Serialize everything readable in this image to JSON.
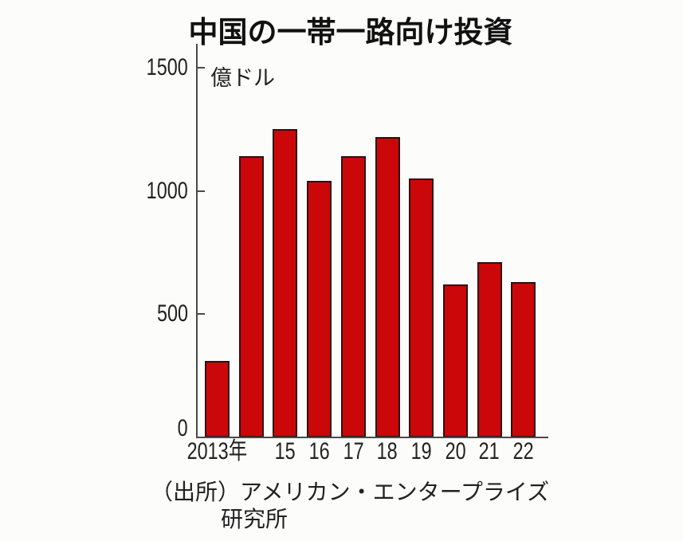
{
  "title": "中国の一帯一路向け投資",
  "unit_label": "億ドル",
  "source": {
    "line1": "（出所）アメリカン・エンタープライズ",
    "line2": "研究所"
  },
  "colors": {
    "background": "#fcfcfb",
    "bar_fill": "#cb0709",
    "bar_border": "#2e1012",
    "axis": "#4a4a4a",
    "text": "#1c1c1c"
  },
  "chart_data": {
    "type": "bar",
    "title": "中国の一帯一路向け投資",
    "ylabel": "億ドル",
    "categories": [
      "2013",
      "2014",
      "2015",
      "2016",
      "2017",
      "2018",
      "2019",
      "2020",
      "2021",
      "2022"
    ],
    "x_tick_labels": [
      "2013年",
      "",
      "15",
      "16",
      "17",
      "18",
      "19",
      "20",
      "21",
      "22"
    ],
    "values": [
      310,
      1140,
      1250,
      1040,
      1140,
      1220,
      1050,
      620,
      710,
      630
    ],
    "ylim": [
      0,
      1500
    ],
    "yticks": [
      0,
      500,
      1000,
      1500
    ],
    "grid": false,
    "legend": "none",
    "source": "（出所）アメリカン・エンタープライズ研究所"
  }
}
